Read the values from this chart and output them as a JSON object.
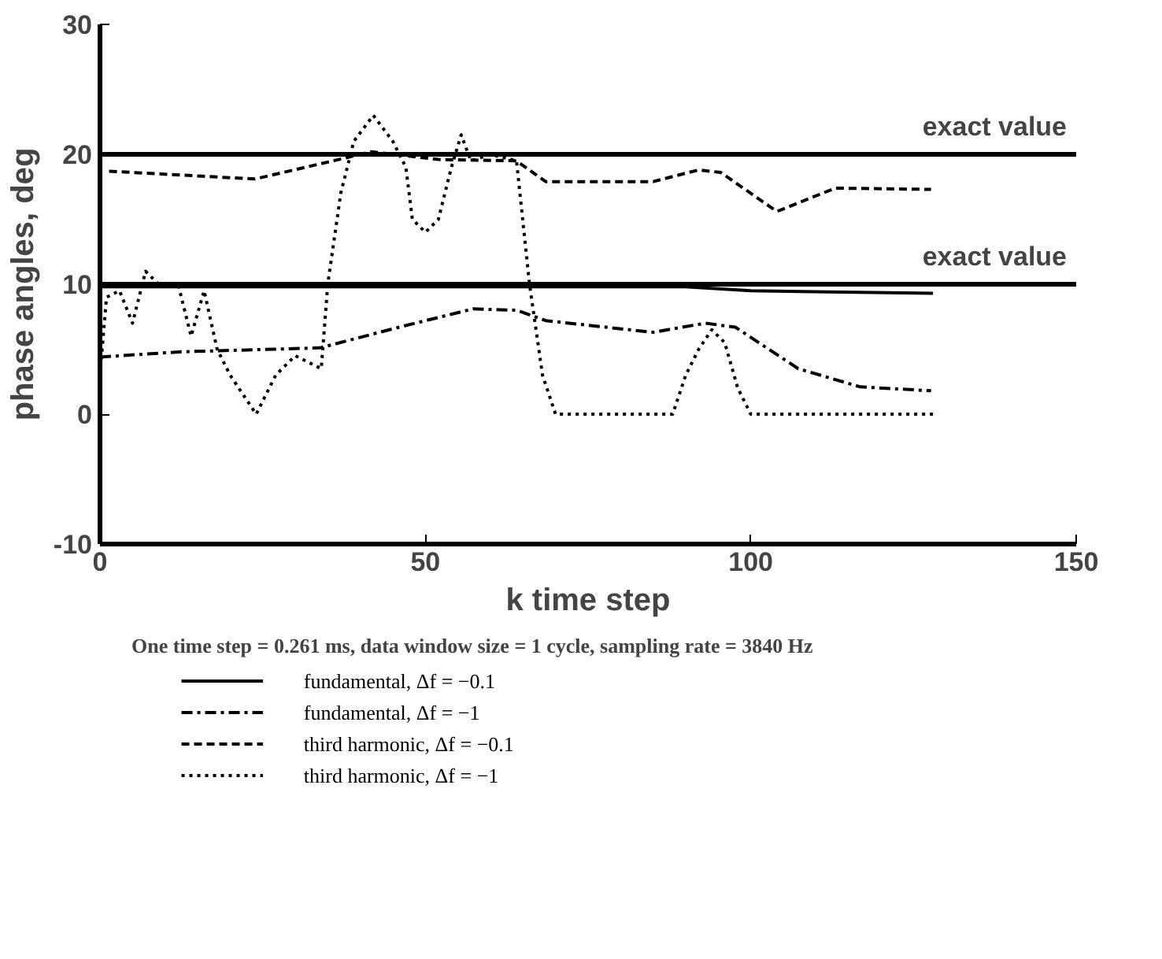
{
  "chart_data": {
    "type": "line",
    "xlabel": "k time step",
    "ylabel": "phase angles, deg",
    "xlim": [
      0,
      150
    ],
    "ylim": [
      -10,
      30
    ],
    "xticks": [
      0,
      50,
      100,
      150
    ],
    "yticks": [
      -10,
      0,
      10,
      20,
      30
    ],
    "grid": false,
    "legend": "bottom",
    "marker": "none",
    "annotations": [
      "One time step = 0.261 ms, data window size = 1 cycle, sampling rate = 3840 Hz"
    ],
    "ref_lines": [
      {
        "axis": "y",
        "value": 20,
        "label": "exact value",
        "color": "#000000"
      },
      {
        "axis": "y",
        "value": 10,
        "label": "exact value",
        "color": "#000000"
      }
    ],
    "series": [
      {
        "name": "fundamental, Δf = −0.1",
        "color": "#000000",
        "line_style": "solid",
        "x": [
          0,
          90,
          100,
          128
        ],
        "values": [
          9.8,
          9.8,
          9.5,
          9.3
        ]
      },
      {
        "name": "fundamental, Δf = −1",
        "color": "#000000",
        "line_style": "dashdot",
        "x": [
          0,
          12.6,
          33.8,
          46,
          57.3,
          64,
          68.5,
          85,
          93,
          97.6,
          107.3,
          116.8,
          127.7
        ],
        "values": [
          4.4,
          4.8,
          5.1,
          6.7,
          8.1,
          8.0,
          7.2,
          6.3,
          7.0,
          6.7,
          3.5,
          2.1,
          1.8
        ]
      },
      {
        "name": "third harmonic, Δf = −0.1",
        "color": "#000000",
        "line_style": "dashed",
        "x": [
          1.4,
          23.8,
          35,
          41.7,
          52,
          64,
          68.5,
          85,
          92,
          95.4,
          104,
          113,
          127.7
        ],
        "values": [
          18.7,
          18.1,
          19.4,
          20.2,
          19.6,
          19.5,
          17.9,
          17.9,
          18.8,
          18.6,
          15.6,
          17.4,
          17.3
        ]
      },
      {
        "name": "third harmonic, Δf = −1",
        "color": "#000000",
        "line_style": "dotted",
        "x": [
          0,
          1,
          3,
          5,
          7,
          9,
          12,
          14,
          16,
          18,
          20,
          24,
          27,
          30,
          34,
          35,
          37,
          39,
          42,
          45,
          47,
          48,
          50,
          52,
          54,
          55.5,
          57,
          60,
          64,
          66,
          68,
          70,
          88,
          90,
          92,
          94,
          96,
          98,
          100,
          128
        ],
        "values": [
          3,
          9,
          9.5,
          7,
          11,
          10,
          10,
          6,
          9.5,
          5,
          3,
          0,
          3,
          4.5,
          3.5,
          10,
          17,
          21,
          23,
          21,
          19,
          15,
          14,
          15,
          19,
          21.5,
          19.5,
          20,
          19.5,
          10,
          3,
          0,
          0,
          3,
          5,
          6.5,
          5.5,
          2,
          0,
          0
        ]
      }
    ]
  }
}
